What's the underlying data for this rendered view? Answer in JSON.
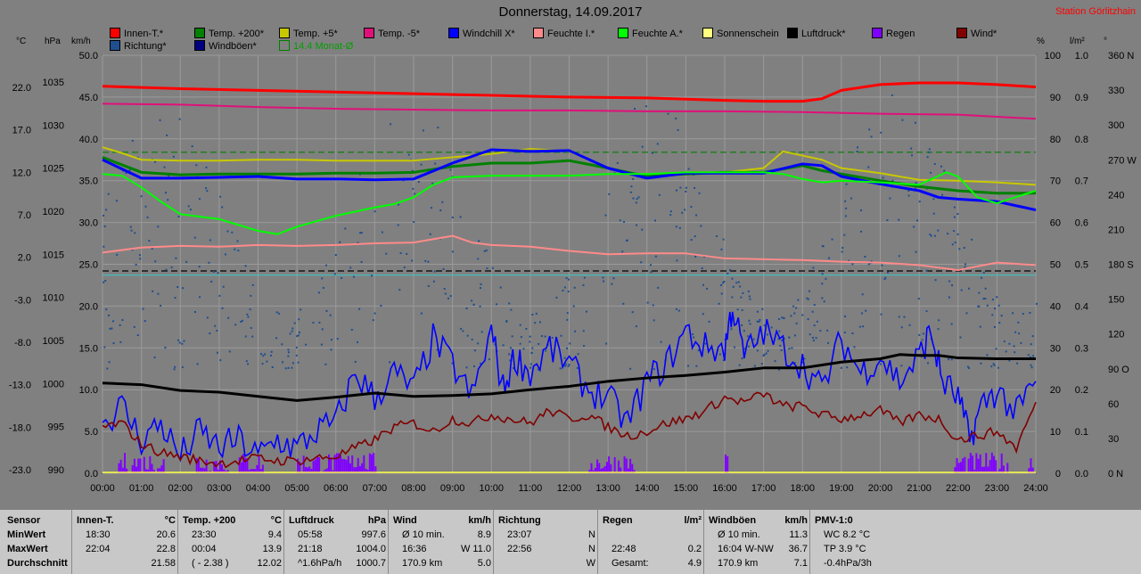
{
  "title": "Donnerstag, 14.09.2017",
  "station": "Station Görlitzhain",
  "legend": [
    {
      "label": "Innen-T.*",
      "color": "#ff0000",
      "icon": "square"
    },
    {
      "label": "Temp. +200*",
      "color": "#008000",
      "icon": "square"
    },
    {
      "label": "Temp. +5*",
      "color": "#c8c800",
      "icon": "square"
    },
    {
      "label": "Temp. -5*",
      "color": "#e0107a",
      "icon": "square"
    },
    {
      "label": "Windchill X*",
      "color": "#0000ff",
      "icon": "square"
    },
    {
      "label": "Feuchte I.*",
      "color": "#ff8a8a",
      "icon": "square"
    },
    {
      "label": "Feuchte A.*",
      "color": "#00ff00",
      "icon": "square"
    },
    {
      "label": "Sonnenschein",
      "color": "#ffff80",
      "icon": "square"
    },
    {
      "label": "Luftdruck*",
      "color": "#000000",
      "icon": "square"
    },
    {
      "label": "Regen",
      "color": "#8000ff",
      "icon": "square"
    },
    {
      "label": "Wind*",
      "color": "#800000",
      "icon": "square"
    },
    {
      "label": "Richtung*",
      "color": "#1f4f8f",
      "icon": "square"
    },
    {
      "label": "Windböen*",
      "color": "#000080",
      "icon": "square"
    },
    {
      "label": "14.4 Monat-Ø",
      "color": "#008000",
      "icon": "hollow",
      "text_color": "#00a000"
    }
  ],
  "units": {
    "celsius": "°C",
    "hpa": "hPa",
    "kmh": "km/h",
    "percent": "%",
    "lm2": "l/m²",
    "degree": "°"
  },
  "chart_data": {
    "type": "line",
    "axes": {
      "celsius_ticks": [
        "22.0",
        "17.0",
        "12.0",
        "7.0",
        "2.0",
        "-3.0",
        "-8.0",
        "-13.0",
        "-18.0",
        "-23.0"
      ],
      "hpa_ticks": [
        "1035",
        "1030",
        "1025",
        "1020",
        "1015",
        "1010",
        "1005",
        "1000",
        "995",
        "990"
      ],
      "kmh_ticks": [
        "50.0",
        "45.0",
        "40.0",
        "35.0",
        "30.0",
        "25.0",
        "20.0",
        "15.0",
        "10.0",
        "5.0",
        "0.0"
      ],
      "percent_ticks": [
        "100",
        "90",
        "80",
        "70",
        "60",
        "50",
        "40",
        "30",
        "20",
        "10",
        "0"
      ],
      "rain_ticks": [
        "1.0",
        "0.9",
        "0.8",
        "0.7",
        "0.6",
        "0.5",
        "0.4",
        "0.3",
        "0.2",
        "0.1",
        "0.0"
      ],
      "direction_ticks": [
        "360 N",
        "330",
        "300",
        "270 W",
        "240",
        "210",
        "180 S",
        "150",
        "120",
        "90 O",
        "60",
        "30",
        "0 N"
      ],
      "x_ticks": [
        "00:00",
        "01:00",
        "02:00",
        "03:00",
        "04:00",
        "05:00",
        "06:00",
        "07:00",
        "08:00",
        "09:00",
        "10:00",
        "11:00",
        "12:00",
        "13:00",
        "14:00",
        "15:00",
        "16:00",
        "17:00",
        "18:00",
        "19:00",
        "20:00",
        "21:00",
        "22:00",
        "23:00",
        "24:00"
      ],
      "kmh_range": [
        0,
        50
      ],
      "grid": true
    },
    "reference_lines": [
      {
        "name": "14.4 Monat-Ø",
        "value_kmh": 38.4,
        "color": "#008000",
        "style": "dashed"
      },
      {
        "value_kmh": 24.2,
        "color": "#000000",
        "style": "dashed"
      },
      {
        "value_kmh": 23.7,
        "color": "#40c0c0",
        "style": "solid"
      }
    ],
    "series": [
      {
        "name": "Innen-T.*",
        "color": "#ff0000",
        "width": 3,
        "x": [
          0,
          2,
          4,
          6,
          8,
          10,
          12,
          14,
          16,
          17,
          18,
          18.5,
          19,
          20,
          21,
          22,
          23,
          24
        ],
        "values": [
          46.3,
          46.0,
          45.8,
          45.6,
          45.4,
          45.2,
          45.0,
          44.9,
          44.6,
          44.5,
          44.5,
          44.8,
          45.8,
          46.5,
          46.7,
          46.7,
          46.5,
          46.2
        ]
      },
      {
        "name": "Temp. -5*",
        "color": "#e0107a",
        "width": 2,
        "x": [
          0,
          2,
          4,
          6,
          8,
          10,
          12,
          14,
          16,
          18,
          20,
          22,
          24
        ],
        "values": [
          44.2,
          44.1,
          43.8,
          43.6,
          43.5,
          43.4,
          43.4,
          43.3,
          43.3,
          43.2,
          43.0,
          42.9,
          42.4
        ]
      },
      {
        "name": "Temp. +5*",
        "color": "#c8c800",
        "width": 2,
        "x": [
          0,
          0.5,
          1,
          2,
          3,
          4,
          5,
          6,
          7,
          8,
          9,
          10,
          11,
          12,
          13,
          14,
          15,
          16,
          17,
          17.5,
          18,
          18.5,
          19,
          20,
          21,
          22,
          23,
          24
        ],
        "values": [
          39.0,
          38.3,
          37.5,
          37.4,
          37.4,
          37.5,
          37.5,
          37.4,
          37.4,
          37.4,
          37.8,
          38.2,
          38.8,
          38.5,
          36.5,
          35.5,
          36.0,
          36.0,
          36.5,
          38.5,
          38.0,
          37.5,
          36.5,
          35.9,
          35.1,
          35.0,
          34.8,
          34.5
        ]
      },
      {
        "name": "Temp. +200*",
        "color": "#008000",
        "width": 3,
        "x": [
          0,
          1,
          2,
          3,
          4,
          5,
          6,
          7,
          8,
          9,
          10,
          11,
          12,
          13,
          14,
          15,
          16,
          17,
          18,
          18.5,
          19,
          20,
          21,
          22,
          23,
          24
        ],
        "values": [
          37.8,
          36.0,
          35.7,
          35.8,
          35.8,
          35.8,
          35.9,
          35.9,
          36.0,
          36.7,
          37.1,
          37.1,
          37.4,
          36.5,
          35.5,
          35.8,
          36.0,
          36.0,
          36.8,
          36.2,
          35.8,
          35.0,
          34.3,
          33.8,
          33.5,
          33.5
        ]
      },
      {
        "name": "Windchill X*",
        "color": "#0000ff",
        "width": 3,
        "x": [
          0,
          1,
          2,
          3,
          4,
          5,
          6,
          7,
          8,
          9,
          10,
          11,
          12,
          13,
          14,
          15,
          16,
          17,
          18,
          18.5,
          19,
          20,
          21,
          21.5,
          22,
          23,
          24
        ],
        "values": [
          37.5,
          35.3,
          35.3,
          35.4,
          35.5,
          35.2,
          35.2,
          35.1,
          35.2,
          37.1,
          38.7,
          38.5,
          38.6,
          36.5,
          35.3,
          35.9,
          35.9,
          35.9,
          37.0,
          36.8,
          35.5,
          34.6,
          33.8,
          33.0,
          32.8,
          32.5,
          31.5
        ]
      },
      {
        "name": "Feuchte A.*",
        "color": "#00ff00",
        "width": 2,
        "x": [
          0,
          0.5,
          1,
          1.5,
          2,
          3,
          4,
          4.5,
          5,
          6,
          7,
          7.5,
          8,
          8.5,
          9,
          10,
          11,
          12,
          13,
          14,
          15,
          16,
          17,
          17.5,
          18,
          18.5,
          19,
          20,
          21,
          21.7,
          22,
          22.5,
          23,
          24
        ],
        "values": [
          35.8,
          35.6,
          34.2,
          32.5,
          31.0,
          30.4,
          29.0,
          28.6,
          29.5,
          30.8,
          31.8,
          32.2,
          33.0,
          34.5,
          35.4,
          35.6,
          35.6,
          35.6,
          35.8,
          35.8,
          36.0,
          36.0,
          36.0,
          35.8,
          35.2,
          34.8,
          35.0,
          34.8,
          34.5,
          36.0,
          35.5,
          33.0,
          32.3,
          33.8
        ]
      },
      {
        "name": "Feuchte I.*",
        "color": "#ff8a8a",
        "width": 2,
        "x": [
          0,
          1,
          2,
          3,
          4,
          5,
          6,
          7,
          8,
          9,
          9.5,
          10,
          11,
          12,
          13,
          14,
          15,
          16,
          17,
          18,
          19,
          20,
          21,
          22,
          23,
          24
        ],
        "values": [
          26.4,
          27.0,
          27.2,
          27.1,
          27.3,
          27.2,
          27.3,
          27.5,
          27.6,
          28.4,
          27.6,
          27.3,
          27.1,
          26.6,
          26.2,
          26.3,
          26.3,
          25.7,
          25.6,
          25.5,
          25.3,
          25.2,
          24.9,
          24.3,
          25.2,
          24.9
        ]
      },
      {
        "name": "Luftdruck*",
        "color": "#000000",
        "width": 3,
        "x": [
          0,
          1,
          2,
          3,
          4,
          5,
          6,
          7,
          8,
          9,
          10,
          11,
          12,
          13,
          14,
          15,
          16,
          17,
          18,
          19,
          20,
          20.5,
          21,
          21.5,
          22,
          23,
          24
        ],
        "values": [
          10.8,
          10.6,
          9.9,
          9.7,
          9.2,
          8.7,
          9.1,
          9.6,
          9.2,
          9.3,
          9.5,
          10.0,
          10.4,
          11.0,
          11.4,
          11.7,
          12.1,
          12.6,
          12.6,
          13.3,
          13.7,
          14.2,
          14.1,
          14.1,
          13.8,
          13.7,
          13.7
        ]
      }
    ],
    "wind": {
      "name": "Wind*",
      "color": "#800000",
      "x": [
        0,
        0.5,
        1,
        1.5,
        2,
        2.5,
        3,
        3.5,
        4,
        4.5,
        5,
        5.5,
        6,
        6.5,
        7,
        7.5,
        8,
        8.5,
        9,
        9.5,
        10,
        10.5,
        11,
        11.5,
        12,
        12.5,
        13,
        13.5,
        14,
        14.5,
        15,
        15.5,
        16,
        16.5,
        17,
        17.5,
        18,
        18.5,
        19,
        19.5,
        20,
        20.5,
        21,
        21.5,
        22,
        22.5,
        23,
        23.5,
        24
      ],
      "values": [
        5.5,
        6.0,
        3.5,
        2.5,
        2.0,
        1.5,
        1.2,
        1.5,
        1.8,
        1.5,
        1.5,
        1.8,
        2.0,
        3.0,
        4.0,
        5.5,
        6.0,
        5.0,
        6.5,
        6.0,
        7.0,
        6.5,
        6.0,
        7.5,
        6.5,
        7.0,
        5.5,
        4.5,
        5.0,
        6.0,
        6.5,
        7.5,
        9.0,
        8.5,
        9.5,
        8.0,
        8.0,
        7.0,
        6.5,
        7.0,
        7.5,
        6.0,
        7.0,
        6.5,
        4.0,
        4.5,
        5.0,
        3.0,
        8.5
      ]
    },
    "gusts": {
      "name": "Windböen*",
      "color": "#0000ff",
      "x": [
        0,
        0.5,
        1,
        1.5,
        2,
        2.5,
        3,
        3.5,
        4,
        4.5,
        5,
        5.5,
        6,
        6.5,
        7,
        7.5,
        8,
        8.5,
        9,
        9.5,
        10,
        10.3,
        10.6,
        11,
        11.5,
        12,
        12.5,
        13,
        13.5,
        14,
        14.5,
        15,
        15.5,
        16,
        16.2,
        16.5,
        17,
        17.5,
        18,
        18.5,
        19,
        19.5,
        20,
        20.5,
        21,
        21.3,
        21.6,
        22,
        22.3,
        22.6,
        23,
        23.5,
        24
      ],
      "values": [
        6,
        8,
        4,
        6,
        2,
        5,
        3,
        4,
        2,
        4,
        3,
        5,
        6,
        12,
        9,
        12,
        10,
        16,
        13,
        9,
        17,
        10,
        14,
        12,
        15,
        13,
        10,
        9,
        6,
        11,
        13,
        17,
        15,
        15,
        20,
        14,
        17,
        15,
        13,
        10,
        16,
        12,
        14,
        11,
        14,
        17,
        11,
        9,
        4,
        8,
        10,
        7,
        11
      ]
    },
    "direction": {
      "name": "Richtung*",
      "color": "#1f4f8f",
      "scatter": true,
      "approx_range_deg": [
        90,
        330
      ]
    },
    "rain": {
      "name": "Regen",
      "color": "#8000ff",
      "unit": "l/m²"
    }
  },
  "stats": {
    "row_labels": [
      "Sensor",
      "MinWert",
      "MaxWert",
      "Durchschnitt"
    ],
    "blocks": [
      {
        "header": "Innen-T.",
        "unit": "°C",
        "rows": [
          [
            "18:30",
            "20.6"
          ],
          [
            "22:04",
            "22.8"
          ],
          [
            "",
            "21.58"
          ]
        ]
      },
      {
        "header": "Temp. +200",
        "unit": "°C",
        "rows": [
          [
            "23:30",
            "9.4"
          ],
          [
            "00:04",
            "13.9"
          ],
          [
            "( - 2.38 )",
            "12.02"
          ]
        ]
      },
      {
        "header": "Luftdruck",
        "unit": "hPa",
        "rows": [
          [
            "05:58",
            "997.6"
          ],
          [
            "21:18",
            "1004.0"
          ],
          [
            "^1.6hPa/h",
            "1000.7"
          ]
        ]
      },
      {
        "header": "Wind",
        "unit": "km/h",
        "rows": [
          [
            "Ø 10 min.",
            "8.9"
          ],
          [
            "16:36",
            "W 11.0"
          ],
          [
            "170.9 km",
            "5.0"
          ]
        ]
      },
      {
        "header": "Richtung",
        "unit": "",
        "rows": [
          [
            "23:07",
            "N"
          ],
          [
            "22:56",
            "N"
          ],
          [
            "",
            "W"
          ]
        ]
      },
      {
        "header": "Regen",
        "unit": "l/m²",
        "rows": [
          [
            "",
            ""
          ],
          [
            "22:48",
            "0.2"
          ],
          [
            "Gesamt:",
            "4.9"
          ]
        ]
      },
      {
        "header": "Windböen",
        "unit": "km/h",
        "rows": [
          [
            "Ø 10 min.",
            "11.3"
          ],
          [
            "16:04  W-NW",
            "36.7"
          ],
          [
            "170.9 km",
            "7.1"
          ]
        ]
      },
      {
        "header": "PMV-1:0",
        "unit": "",
        "rows": [
          [
            "WC 8.2 °C",
            ""
          ],
          [
            "TP 3.9 °C",
            ""
          ],
          [
            "-0.4hPa/3h",
            ""
          ]
        ]
      }
    ]
  }
}
